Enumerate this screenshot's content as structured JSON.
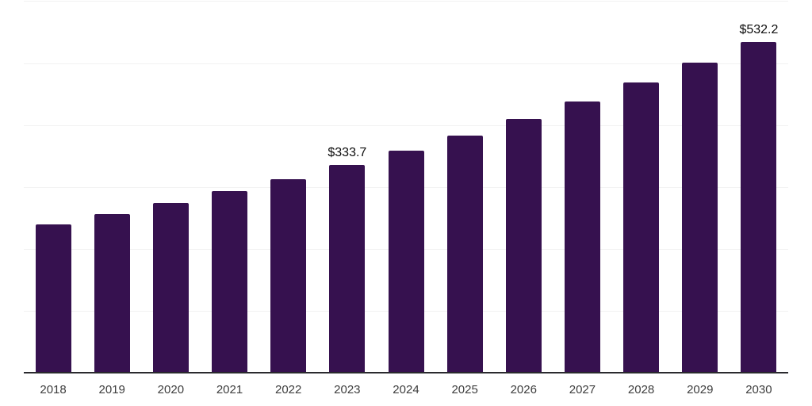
{
  "chart_data": {
    "type": "bar",
    "title": "",
    "xlabel": "",
    "ylabel": "",
    "categories": [
      "2018",
      "2019",
      "2020",
      "2021",
      "2022",
      "2023",
      "2024",
      "2025",
      "2026",
      "2027",
      "2028",
      "2029",
      "2030"
    ],
    "values": [
      238,
      255,
      273,
      292,
      311,
      333.7,
      357,
      381,
      409,
      436,
      467,
      499,
      532.2
    ],
    "data_labels": [
      {
        "category": "2023",
        "text": "$333.7"
      },
      {
        "category": "2030",
        "text": "$532.2"
      }
    ],
    "ylim": [
      0,
      600
    ],
    "grid_step": 100,
    "grid": "horizontal-only",
    "y_tick_labels_visible": false,
    "legend": "none",
    "colors": {
      "bar": "#36114f",
      "axis": "#2a2a2e",
      "gridline": "#f2f2f2",
      "x_label": "#3d3d3d",
      "value_label": "#0d0d0d",
      "background": "#ffffff"
    }
  }
}
